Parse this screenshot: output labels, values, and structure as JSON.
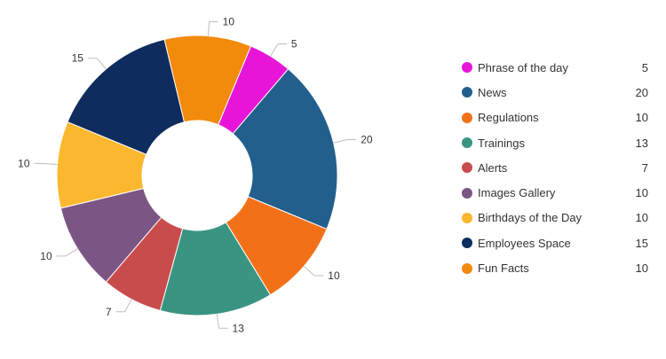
{
  "chart_data": {
    "type": "pie",
    "donut": true,
    "title": "",
    "legend_position": "right",
    "categories": [
      "Phrase of the day",
      "News",
      "Regulations",
      "Trainings",
      "Alerts",
      "Images Gallery",
      "Birthdays of the Day",
      "Employees Space",
      "Fun Facts"
    ],
    "values": [
      5,
      20,
      10,
      13,
      7,
      10,
      10,
      15,
      10
    ],
    "colors": [
      "#e815d9",
      "#235f8c",
      "#f27118",
      "#3a9482",
      "#c94c4c",
      "#7b5584",
      "#fbb72d",
      "#0e2d5e",
      "#f28a0c"
    ]
  }
}
